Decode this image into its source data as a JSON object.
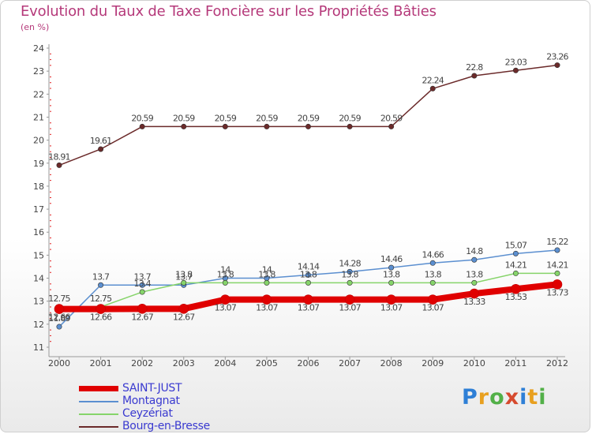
{
  "chart_data": {
    "type": "line",
    "title": "Evolution du Taux de Taxe Foncière sur les Propriétés Bâties",
    "subtitle": "(en %)",
    "categories": [
      "2000",
      "2001",
      "2002",
      "2003",
      "2004",
      "2005",
      "2006",
      "2007",
      "2008",
      "2009",
      "2010",
      "2011",
      "2012"
    ],
    "ylim": [
      11,
      24
    ],
    "yticks": [
      11,
      12,
      13,
      14,
      15,
      16,
      17,
      18,
      19,
      20,
      21,
      22,
      23,
      24
    ],
    "grid": false,
    "series": [
      {
        "name": "SAINT-JUST",
        "color": "#e00000",
        "values": [
          12.66,
          12.66,
          12.67,
          12.67,
          13.07,
          13.07,
          13.07,
          13.07,
          13.07,
          13.07,
          13.33,
          13.53,
          13.73
        ],
        "labels": [
          "12.66",
          "12.66",
          "12.67",
          "12.67",
          "13.07",
          "13.07",
          "13.07",
          "13.07",
          "13.07",
          "13.07",
          "13.33",
          "13.53",
          "13.73"
        ]
      },
      {
        "name": "Montagnat",
        "color": "#5b8fd0",
        "values": [
          11.89,
          13.7,
          13.7,
          13.7,
          14.0,
          14.0,
          14.14,
          14.28,
          14.46,
          14.66,
          14.8,
          15.07,
          15.22
        ],
        "labels": [
          "11.89",
          "13.7",
          "13.7",
          "13.7",
          "14",
          "14",
          "14.14",
          "14.28",
          "14.46",
          "14.66",
          "14.8",
          "15.07",
          "15.22"
        ]
      },
      {
        "name": "Ceyzériat",
        "color": "#86d46a",
        "values": [
          12.75,
          12.75,
          13.4,
          13.8,
          13.8,
          13.8,
          13.8,
          13.8,
          13.8,
          13.8,
          13.8,
          14.21,
          14.21
        ],
        "labels": [
          "12.75",
          "12.75",
          "13.4",
          "13.8",
          "13.8",
          "13.8",
          "13.8",
          "13.8",
          "13.8",
          "13.8",
          "13.8",
          "14.21",
          "14.21"
        ]
      },
      {
        "name": "Bourg-en-Bresse",
        "color": "#6b2a2a",
        "values": [
          18.91,
          19.61,
          20.59,
          20.59,
          20.59,
          20.59,
          20.59,
          20.59,
          20.59,
          22.24,
          22.8,
          23.03,
          23.26
        ],
        "labels": [
          "18.91",
          "19.61",
          "20.59",
          "20.59",
          "20.59",
          "20.59",
          "20.59",
          "20.59",
          "20.59",
          "22.24",
          "22.8",
          "23.03",
          "23.26"
        ]
      }
    ],
    "legend": [
      "SAINT-JUST",
      "Montagnat",
      "Ceyzériat",
      "Bourg-en-Bresse"
    ]
  },
  "brand": [
    "P",
    "r",
    "o",
    "x",
    "i",
    "t",
    "i"
  ]
}
